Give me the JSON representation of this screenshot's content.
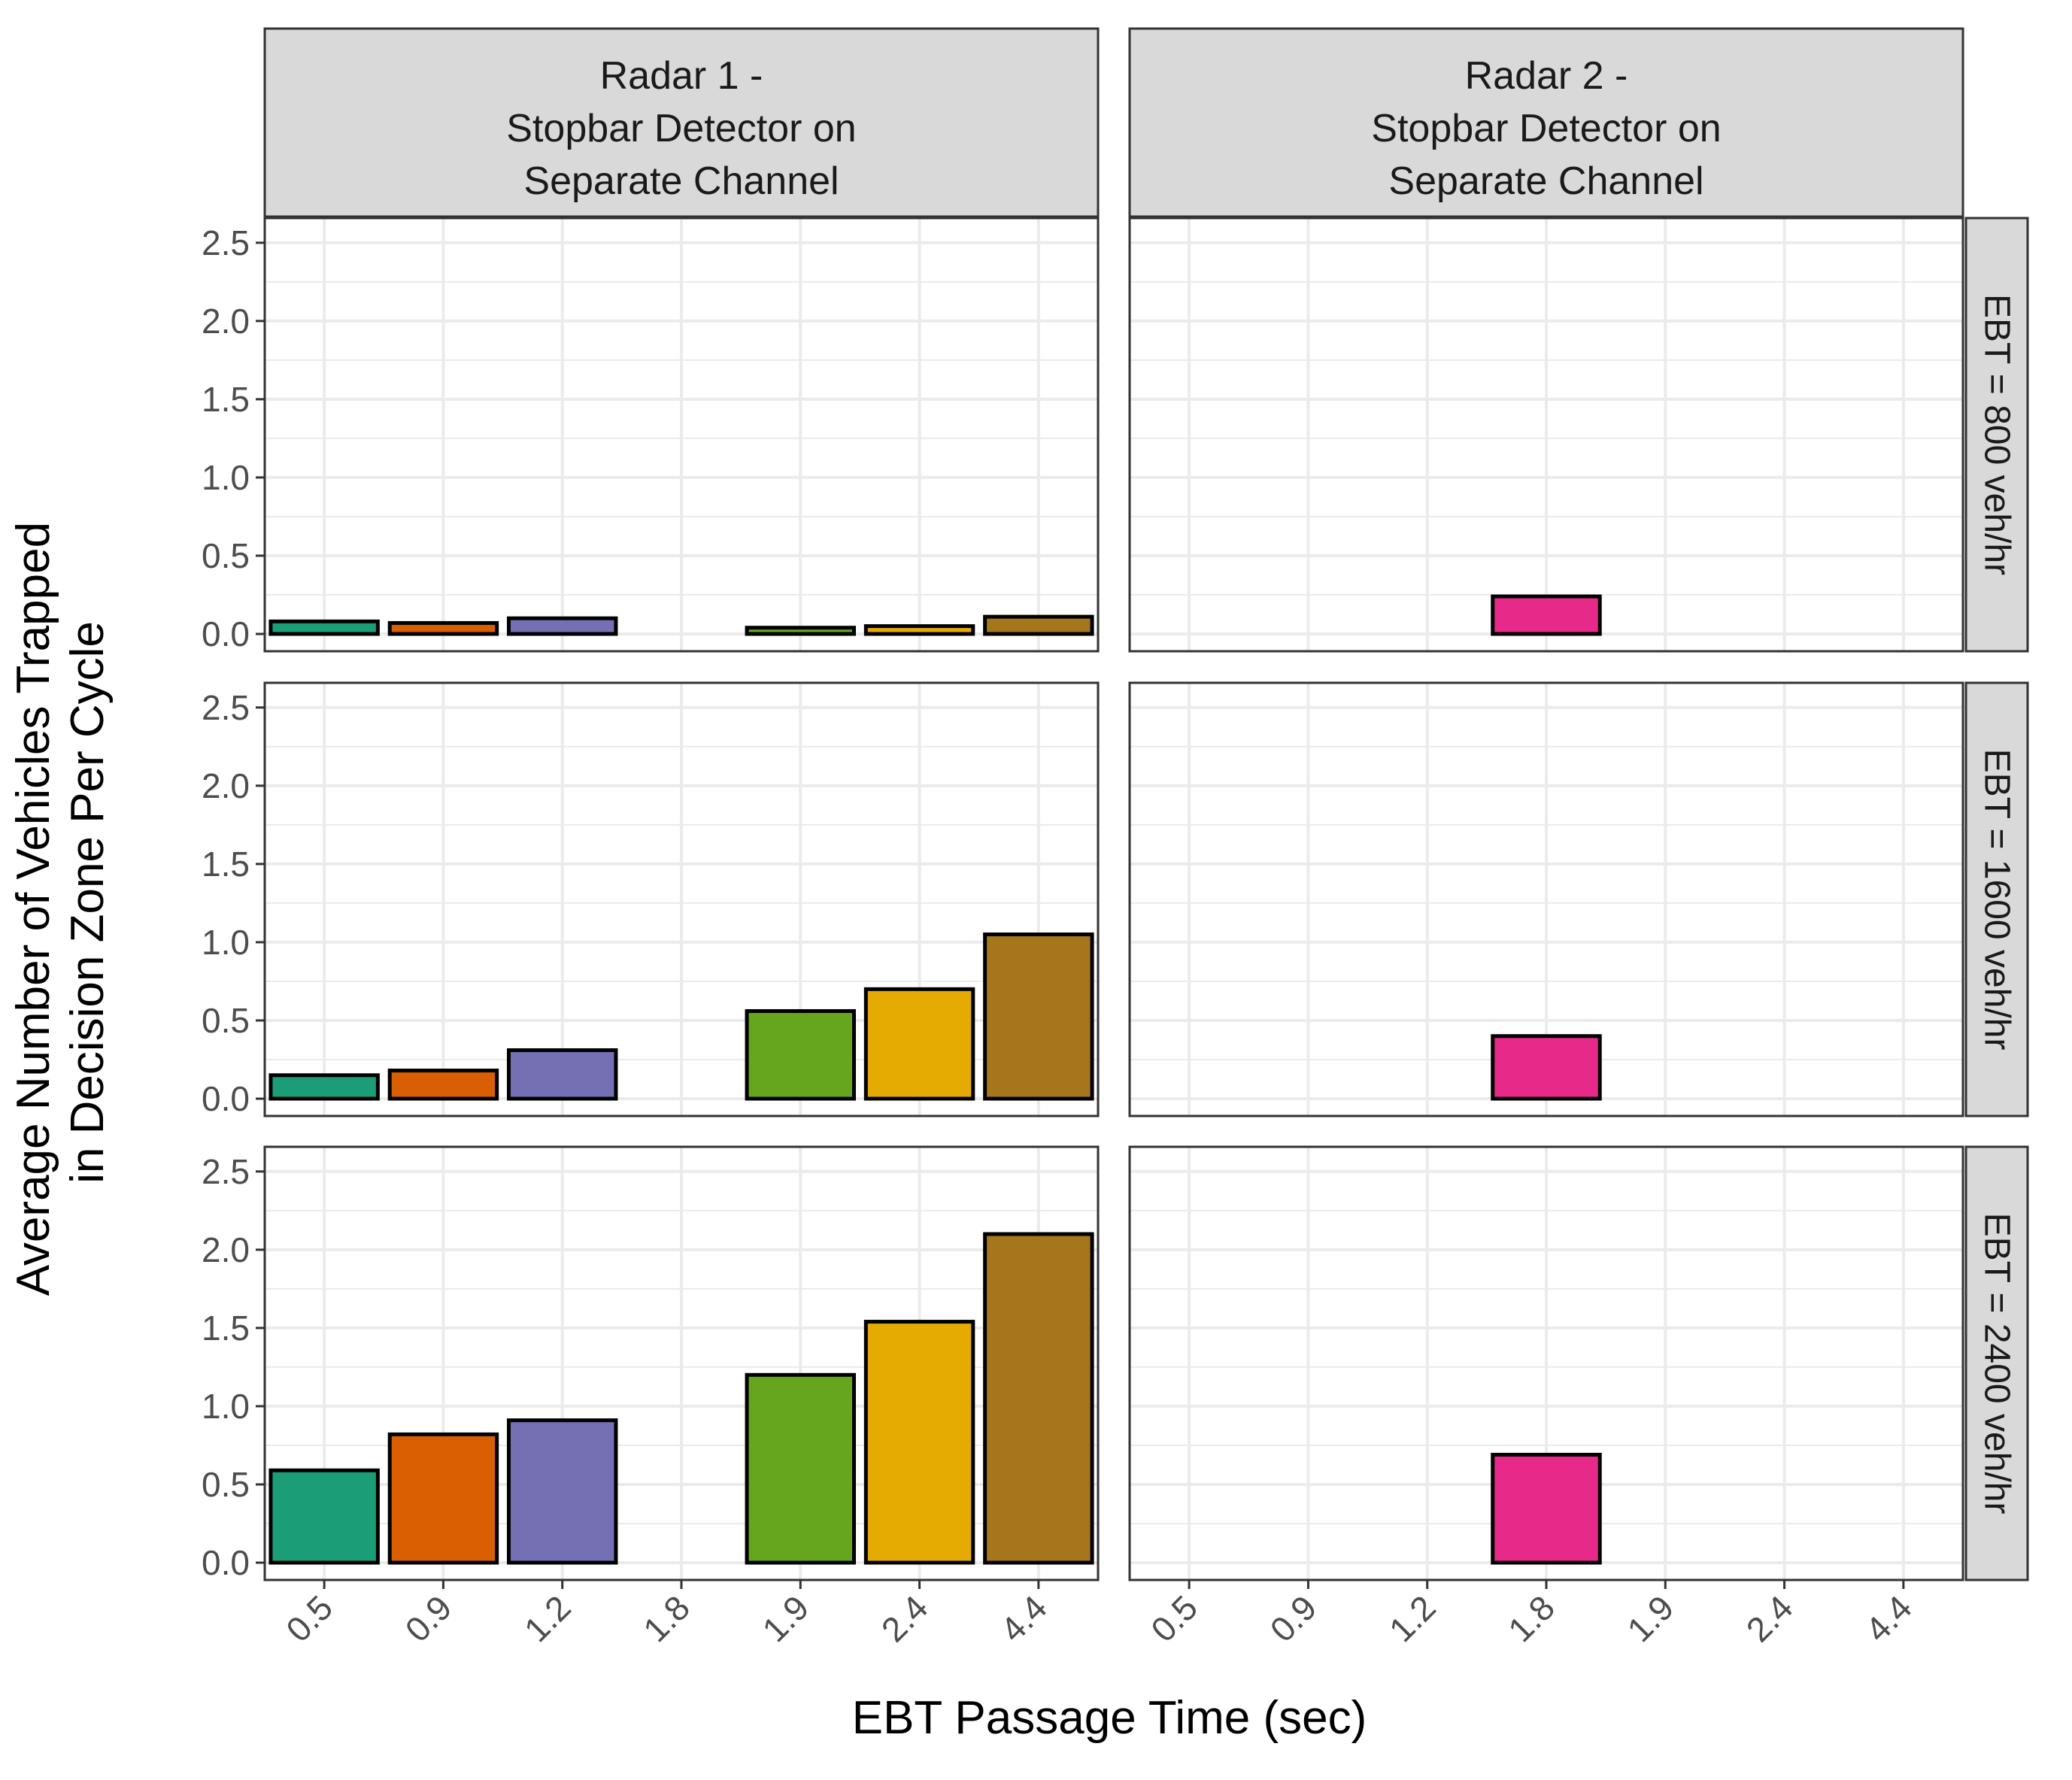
{
  "chart_data": {
    "type": "bar",
    "layout": "faceted grid (3 rows x 2 columns)",
    "xlabel": "EBT Passage Time (sec)",
    "ylabel_lines": [
      "Average Number of Vehicles Trapped",
      "in Decision Zone Per Cycle"
    ],
    "categories": [
      "0.5",
      "0.9",
      "1.2",
      "1.8",
      "1.9",
      "2.4",
      "4.4"
    ],
    "ylim": [
      0,
      2.6
    ],
    "yticks": [
      "0.0",
      "0.5",
      "1.0",
      "1.5",
      "2.0",
      "2.5"
    ],
    "grid": true,
    "legend": "none",
    "columns": [
      {
        "label_lines": [
          "Radar 1 -",
          "Stopbar Detector on",
          "Separate Channel"
        ]
      },
      {
        "label_lines": [
          "Radar 2 -",
          "Stopbar Detector on",
          "Separate Channel"
        ]
      }
    ],
    "rows": [
      {
        "label": "EBT = 800 veh/hr"
      },
      {
        "label": "EBT = 1600 veh/hr"
      },
      {
        "label": "EBT = 2400 veh/hr"
      }
    ],
    "colors": {
      "0.5": "#1B9E77",
      "0.9": "#D95F02",
      "1.2": "#7570B3",
      "1.8": "#E7298A",
      "1.9": "#66A61E",
      "2.4": "#E6AB02",
      "4.4": "#A6761D"
    },
    "panels": [
      {
        "row": 0,
        "col": 0,
        "values": [
          0.08,
          0.07,
          0.1,
          null,
          0.04,
          0.05,
          0.11
        ]
      },
      {
        "row": 0,
        "col": 1,
        "values": [
          null,
          null,
          null,
          0.24,
          null,
          null,
          null
        ]
      },
      {
        "row": 1,
        "col": 0,
        "values": [
          0.15,
          0.18,
          0.31,
          null,
          0.56,
          0.7,
          1.05
        ]
      },
      {
        "row": 1,
        "col": 1,
        "values": [
          null,
          null,
          null,
          0.4,
          null,
          null,
          null
        ]
      },
      {
        "row": 2,
        "col": 0,
        "values": [
          0.59,
          0.82,
          0.91,
          null,
          1.2,
          1.54,
          2.1
        ]
      },
      {
        "row": 2,
        "col": 1,
        "values": [
          null,
          null,
          null,
          0.69,
          null,
          null,
          null
        ]
      }
    ]
  }
}
